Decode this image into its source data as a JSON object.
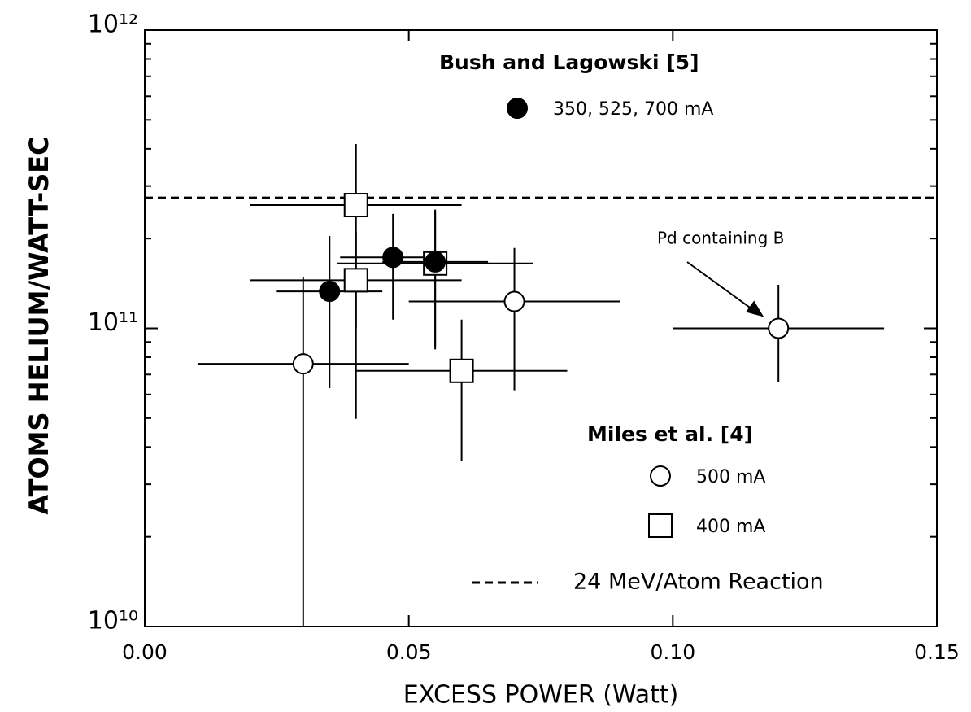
{
  "chart_data": {
    "type": "scatter",
    "xlabel": "EXCESS POWER (Watt)",
    "ylabel": "ATOMS HELIUM/WATT-SEC",
    "xlim": [
      0,
      0.15
    ],
    "ylim": [
      10000000000.0,
      1000000000000.0
    ],
    "ylog": true,
    "xticks": [
      {
        "value": 0,
        "label": "0.00"
      },
      {
        "value": 0.05,
        "label": "0.05"
      },
      {
        "value": 0.1,
        "label": "0.10"
      },
      {
        "value": 0.15,
        "label": "0.15"
      }
    ],
    "yticks": [
      {
        "value": 10000000000.0,
        "label": "10¹⁰"
      },
      {
        "value": 100000000000.0,
        "label": "10¹¹"
      },
      {
        "value": 1000000000000.0,
        "label": "10¹²"
      }
    ],
    "groups": [
      "Bush and Lagowski [5]",
      "Miles et al. [4]"
    ],
    "series": [
      {
        "name": "350, 525, 700 mA",
        "marker": "circle",
        "color": "#000000",
        "x": [
          0.035,
          0.047,
          0.055
        ],
        "y": [
          133000000000.0,
          173000000000.0,
          167000000000.0
        ],
        "xerr": [
          0.01,
          0.01,
          0.01
        ],
        "y_low": [
          63000000000.0,
          107000000000.0,
          87000000000.0
        ],
        "y_high": [
          204000000000.0,
          242000000000.0,
          250000000000.0
        ]
      },
      {
        "name": "500 mA",
        "marker": "circle",
        "color": "#ffffff",
        "x": [
          0.03,
          0.07,
          0.12
        ],
        "y": [
          76000000000.0,
          123000000000.0,
          100000000000.0
        ],
        "xerr": [
          0.02,
          0.02,
          0.02
        ],
        "y_low": [
          10000000000.0,
          62000000000.0,
          66000000000.0
        ],
        "y_high": [
          149000000000.0,
          186000000000.0,
          140000000000.0
        ]
      },
      {
        "name": "400 mA",
        "marker": "square",
        "color": "#ffffff",
        "x": [
          0.04,
          0.04,
          0.06,
          0.055
        ],
        "y": [
          259000000000.0,
          145000000000.0,
          72000000000.0,
          165000000000.0
        ],
        "xerr": [
          0.02,
          0.02,
          0.02,
          0.0185
        ],
        "y_low": [
          49700000000.0,
          100000000000.0,
          35800000000.0,
          85000000000.0
        ],
        "y_high": [
          415000000000.0,
          210000000000.0,
          107000000000.0,
          247000000000.0
        ]
      }
    ],
    "reference_line": {
      "name": "24 MeV/Atom Reaction",
      "y": 274000000000.0
    },
    "annotation": {
      "text": "Pd containing B",
      "x": 0.12,
      "y": 100000000000.0
    }
  }
}
